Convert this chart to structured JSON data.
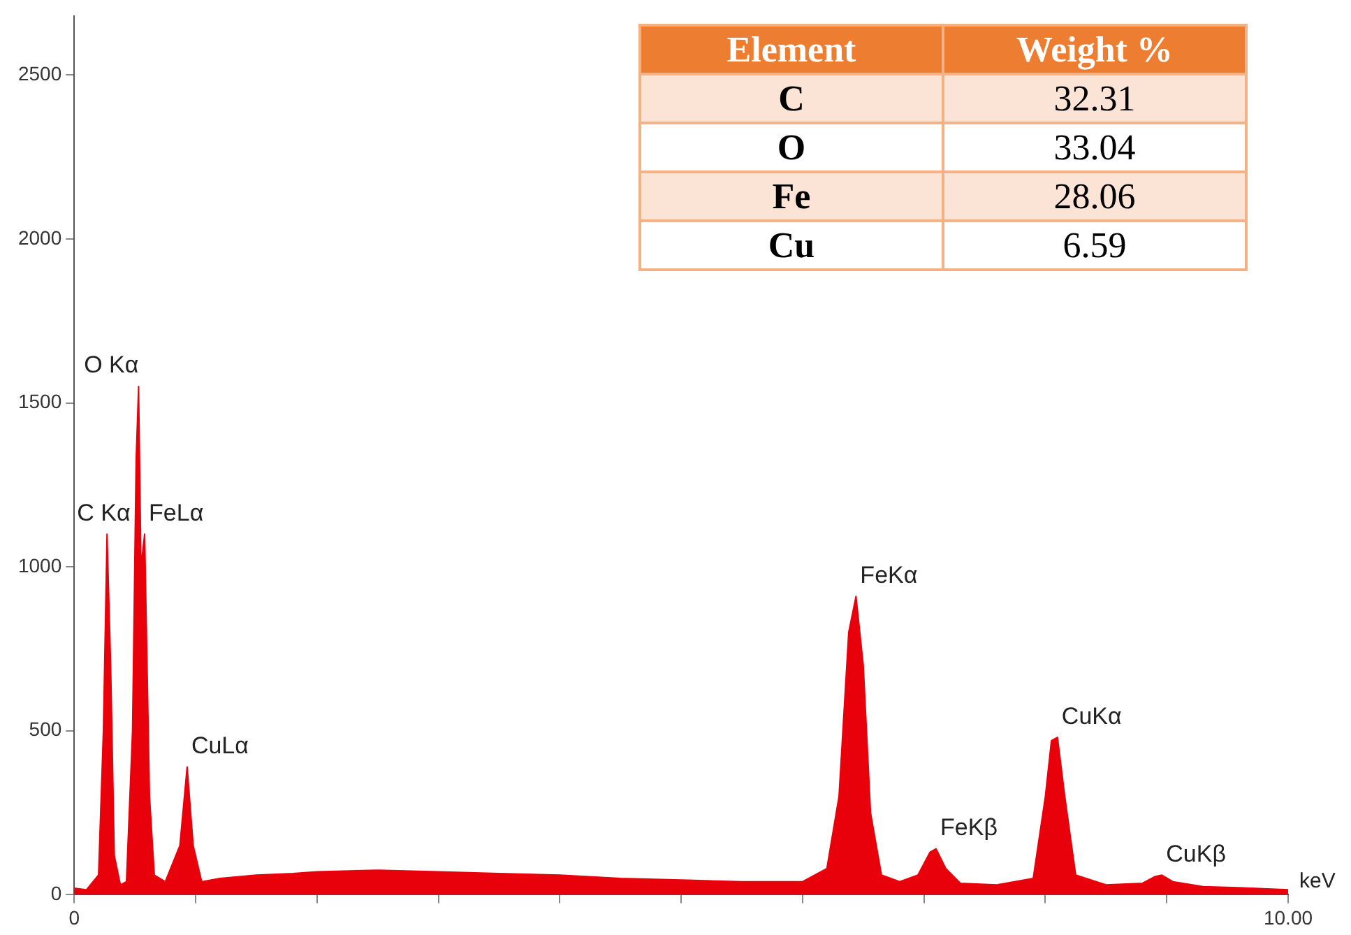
{
  "chart_data": [
    {
      "type": "area",
      "xlabel": "keV",
      "color": "#e8000b",
      "marker": "none",
      "grid": false,
      "legend": false,
      "x": [
        0,
        0.1,
        0.2,
        0.24,
        0.27,
        0.3,
        0.33,
        0.38,
        0.43,
        0.48,
        0.51,
        0.53,
        0.55,
        0.58,
        0.62,
        0.66,
        0.75,
        0.87,
        0.93,
        0.98,
        1.05,
        1.2,
        1.5,
        1.8,
        2.0,
        2.5,
        3.0,
        3.5,
        4.0,
        4.5,
        5.0,
        5.5,
        6.0,
        6.2,
        6.3,
        6.38,
        6.44,
        6.5,
        6.56,
        6.65,
        6.8,
        6.95,
        7.05,
        7.1,
        7.18,
        7.3,
        7.6,
        7.9,
        8.0,
        8.05,
        8.1,
        8.16,
        8.25,
        8.5,
        8.8,
        8.9,
        8.96,
        9.05,
        9.3,
        9.7,
        10
      ],
      "values": [
        20,
        15,
        60,
        500,
        1100,
        700,
        120,
        30,
        40,
        500,
        1330,
        1550,
        1000,
        1100,
        300,
        60,
        40,
        150,
        390,
        150,
        40,
        50,
        60,
        65,
        70,
        75,
        70,
        65,
        60,
        50,
        45,
        40,
        40,
        80,
        300,
        800,
        910,
        700,
        250,
        60,
        40,
        60,
        130,
        140,
        80,
        35,
        30,
        50,
        300,
        470,
        480,
        300,
        60,
        30,
        35,
        55,
        60,
        40,
        25,
        20,
        15
      ],
      "xlim": [
        0,
        10
      ],
      "xticks": [
        0,
        {
          "value": 1,
          "label": null
        },
        {
          "value": 2,
          "label": null
        },
        {
          "value": 3,
          "label": null
        },
        {
          "value": 4,
          "label": null
        },
        {
          "value": 5,
          "label": null
        },
        {
          "value": 6,
          "label": null
        },
        {
          "value": 7,
          "label": null
        },
        {
          "value": 8,
          "label": null
        },
        {
          "value": 9,
          "label": null
        },
        {
          "value": 10,
          "label": "10.00"
        }
      ],
      "ylim": [
        0,
        2680
      ],
      "yticks": [
        0,
        500,
        1000,
        1500,
        2000,
        2500
      ],
      "annotations": [
        {
          "text": "C Kα",
          "x": 0.27,
          "y": 1100
        },
        {
          "text": "O Kα",
          "x": 0.53,
          "y": 1550
        },
        {
          "text": "FeLα",
          "x": 0.58,
          "y": 1100
        },
        {
          "text": "CuLα",
          "x": 0.93,
          "y": 390
        },
        {
          "text": "FeKα",
          "x": 6.44,
          "y": 910
        },
        {
          "text": "FeKβ",
          "x": 7.1,
          "y": 140
        },
        {
          "text": "CuKα",
          "x": 8.1,
          "y": 480
        },
        {
          "text": "CuKβ",
          "x": 8.96,
          "y": 60
        }
      ]
    },
    {
      "type": "other",
      "xlabel": "Element",
      "ylabel": "Weight %",
      "categories": [
        "C",
        "O",
        "Fe",
        "Cu"
      ],
      "values": [
        32.31,
        33.04,
        28.06,
        6.59
      ],
      "data_labels": true
    }
  ]
}
